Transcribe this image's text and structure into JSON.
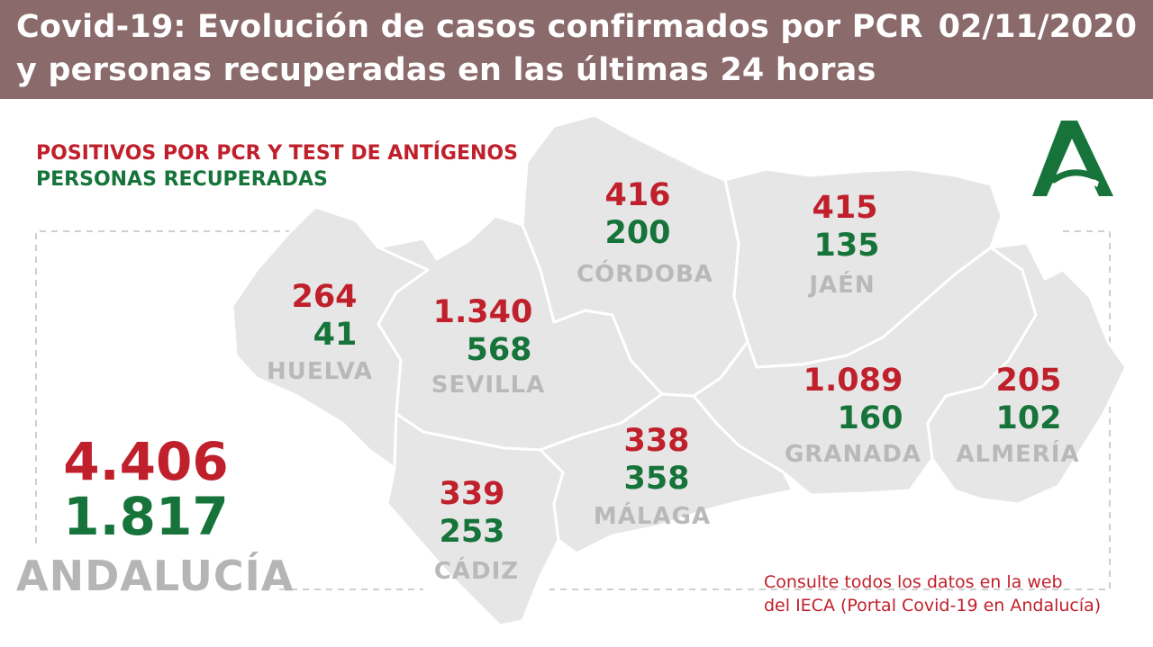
{
  "header": {
    "title": "Covid-19: Evolución de casos confirmados por PCR y personas recuperadas en las últimas 24 horas",
    "date": "02/11/2020"
  },
  "legend": {
    "positives": "POSITIVOS POR PCR Y TEST DE ANTÍGENOS",
    "recovered": "PERSONAS RECUPERADAS"
  },
  "colors": {
    "positives": "#c0202b",
    "recovered": "#16743a",
    "header": "#8a6a6b",
    "map_fill": "#e6e6e6"
  },
  "provinces": [
    {
      "name": "HUELVA",
      "positives": "264",
      "recovered": "41"
    },
    {
      "name": "SEVILLA",
      "positives": "1.340",
      "recovered": "568"
    },
    {
      "name": "CÓRDOBA",
      "positives": "416",
      "recovered": "200"
    },
    {
      "name": "JAÉN",
      "positives": "415",
      "recovered": "135"
    },
    {
      "name": "GRANADA",
      "positives": "1.089",
      "recovered": "160"
    },
    {
      "name": "ALMERÍA",
      "positives": "205",
      "recovered": "102"
    },
    {
      "name": "CÁDIZ",
      "positives": "339",
      "recovered": "253"
    },
    {
      "name": "MÁLAGA",
      "positives": "338",
      "recovered": "358"
    }
  ],
  "total": {
    "name": "ANDALUCÍA",
    "positives": "4.406",
    "recovered": "1.817"
  },
  "footer": {
    "line1": "Consulte todos los datos en la web",
    "line2": "del IECA (Portal Covid-19 en Andalucía)"
  },
  "logo": {
    "icon": "junta-de-andalucia-logo-icon"
  }
}
